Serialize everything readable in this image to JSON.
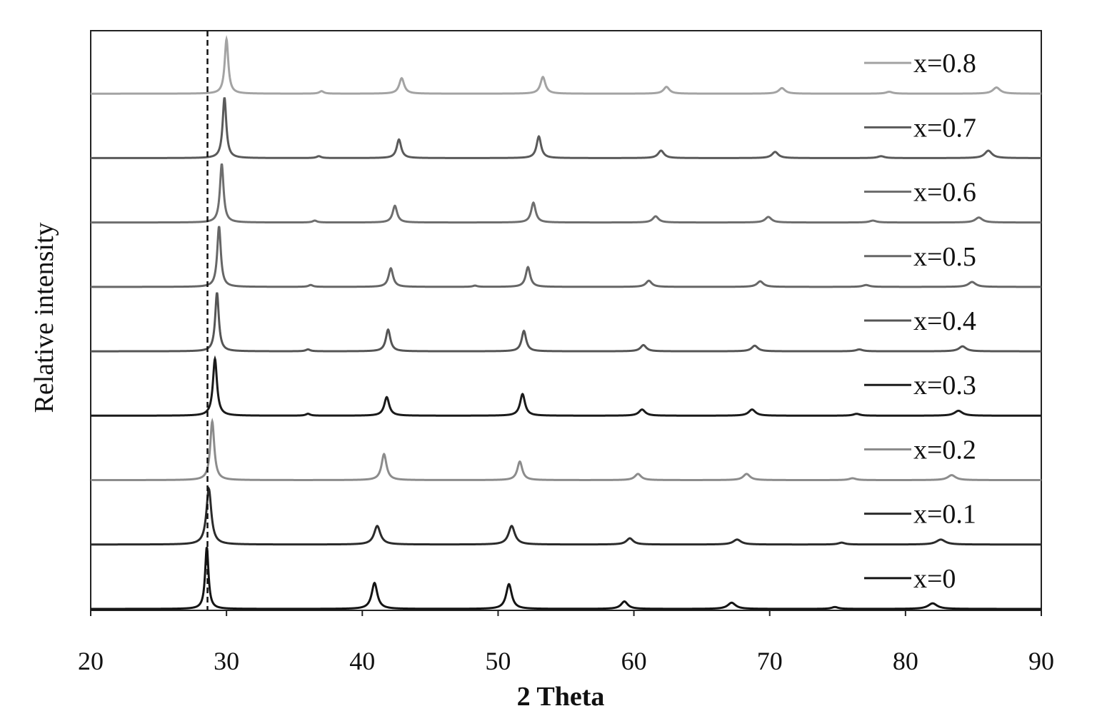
{
  "chart_data": {
    "type": "line",
    "title": "",
    "xlabel": "2 Theta",
    "ylabel": "Relative intensity",
    "xlim": [
      20,
      90
    ],
    "xticks": [
      20,
      30,
      40,
      50,
      60,
      70,
      80,
      90
    ],
    "grid": false,
    "legend_position": "right",
    "reference_line": {
      "x": 28.6,
      "style": "dashed"
    },
    "series": [
      {
        "name": "x=0",
        "color": "#141414",
        "peaks": [
          [
            28.55,
            1.0,
            0.15
          ],
          [
            40.9,
            0.42,
            0.25
          ],
          [
            50.8,
            0.4,
            0.25
          ],
          [
            59.3,
            0.12,
            0.3
          ],
          [
            67.2,
            0.1,
            0.35
          ],
          [
            74.8,
            0.03,
            0.3
          ],
          [
            82.0,
            0.09,
            0.4
          ]
        ]
      },
      {
        "name": "x=0.1",
        "color": "#2b2b2b",
        "peaks": [
          [
            28.7,
            0.9,
            0.22
          ],
          [
            41.1,
            0.3,
            0.28
          ],
          [
            51.0,
            0.3,
            0.28
          ],
          [
            59.7,
            0.1,
            0.3
          ],
          [
            67.6,
            0.08,
            0.35
          ],
          [
            75.3,
            0.03,
            0.3
          ],
          [
            82.6,
            0.08,
            0.4
          ]
        ]
      },
      {
        "name": "x=0.2",
        "color": "#8c8c8c",
        "peaks": [
          [
            28.95,
            0.95,
            0.18
          ],
          [
            41.6,
            0.42,
            0.22
          ],
          [
            51.6,
            0.3,
            0.22
          ],
          [
            60.3,
            0.1,
            0.28
          ],
          [
            68.3,
            0.1,
            0.3
          ],
          [
            76.1,
            0.03,
            0.3
          ],
          [
            83.4,
            0.08,
            0.35
          ]
        ]
      },
      {
        "name": "x=0.3",
        "color": "#1a1a1a",
        "peaks": [
          [
            29.15,
            0.92,
            0.18
          ],
          [
            36.0,
            0.03,
            0.2
          ],
          [
            41.8,
            0.3,
            0.22
          ],
          [
            51.8,
            0.35,
            0.22
          ],
          [
            60.6,
            0.1,
            0.28
          ],
          [
            68.7,
            0.1,
            0.3
          ],
          [
            76.4,
            0.03,
            0.3
          ],
          [
            83.9,
            0.08,
            0.35
          ]
        ]
      },
      {
        "name": "x=0.4",
        "color": "#555555",
        "peaks": [
          [
            29.3,
            0.95,
            0.16
          ],
          [
            36.0,
            0.03,
            0.2
          ],
          [
            41.9,
            0.35,
            0.2
          ],
          [
            51.9,
            0.33,
            0.2
          ],
          [
            60.7,
            0.1,
            0.26
          ],
          [
            68.9,
            0.09,
            0.28
          ],
          [
            76.6,
            0.03,
            0.3
          ],
          [
            84.2,
            0.08,
            0.32
          ]
        ]
      },
      {
        "name": "x=0.5",
        "color": "#666666",
        "peaks": [
          [
            29.45,
            0.98,
            0.16
          ],
          [
            36.2,
            0.03,
            0.2
          ],
          [
            42.1,
            0.3,
            0.2
          ],
          [
            48.3,
            0.02,
            0.2
          ],
          [
            52.2,
            0.32,
            0.2
          ],
          [
            61.1,
            0.1,
            0.26
          ],
          [
            69.3,
            0.09,
            0.28
          ],
          [
            77.1,
            0.03,
            0.3
          ],
          [
            84.9,
            0.08,
            0.32
          ]
        ]
      },
      {
        "name": "x=0.6",
        "color": "#6e6e6e",
        "peaks": [
          [
            29.65,
            0.95,
            0.16
          ],
          [
            36.5,
            0.03,
            0.2
          ],
          [
            42.4,
            0.27,
            0.2
          ],
          [
            52.6,
            0.32,
            0.2
          ],
          [
            61.6,
            0.1,
            0.26
          ],
          [
            69.9,
            0.09,
            0.28
          ],
          [
            77.6,
            0.03,
            0.3
          ],
          [
            85.4,
            0.08,
            0.32
          ]
        ]
      },
      {
        "name": "x=0.7",
        "color": "#5a5a5a",
        "peaks": [
          [
            29.85,
            0.98,
            0.16
          ],
          [
            36.8,
            0.03,
            0.2
          ],
          [
            42.7,
            0.3,
            0.2
          ],
          [
            53.0,
            0.35,
            0.2
          ],
          [
            62.0,
            0.12,
            0.26
          ],
          [
            70.4,
            0.1,
            0.28
          ],
          [
            78.2,
            0.03,
            0.3
          ],
          [
            86.1,
            0.12,
            0.32
          ]
        ]
      },
      {
        "name": "x=0.8",
        "color": "#a3a3a3",
        "peaks": [
          [
            30.0,
            0.88,
            0.16
          ],
          [
            37.0,
            0.04,
            0.2
          ],
          [
            42.9,
            0.25,
            0.22
          ],
          [
            53.3,
            0.27,
            0.22
          ],
          [
            62.4,
            0.11,
            0.26
          ],
          [
            70.9,
            0.09,
            0.28
          ],
          [
            78.8,
            0.03,
            0.3
          ],
          [
            86.7,
            0.1,
            0.32
          ]
        ]
      }
    ]
  }
}
